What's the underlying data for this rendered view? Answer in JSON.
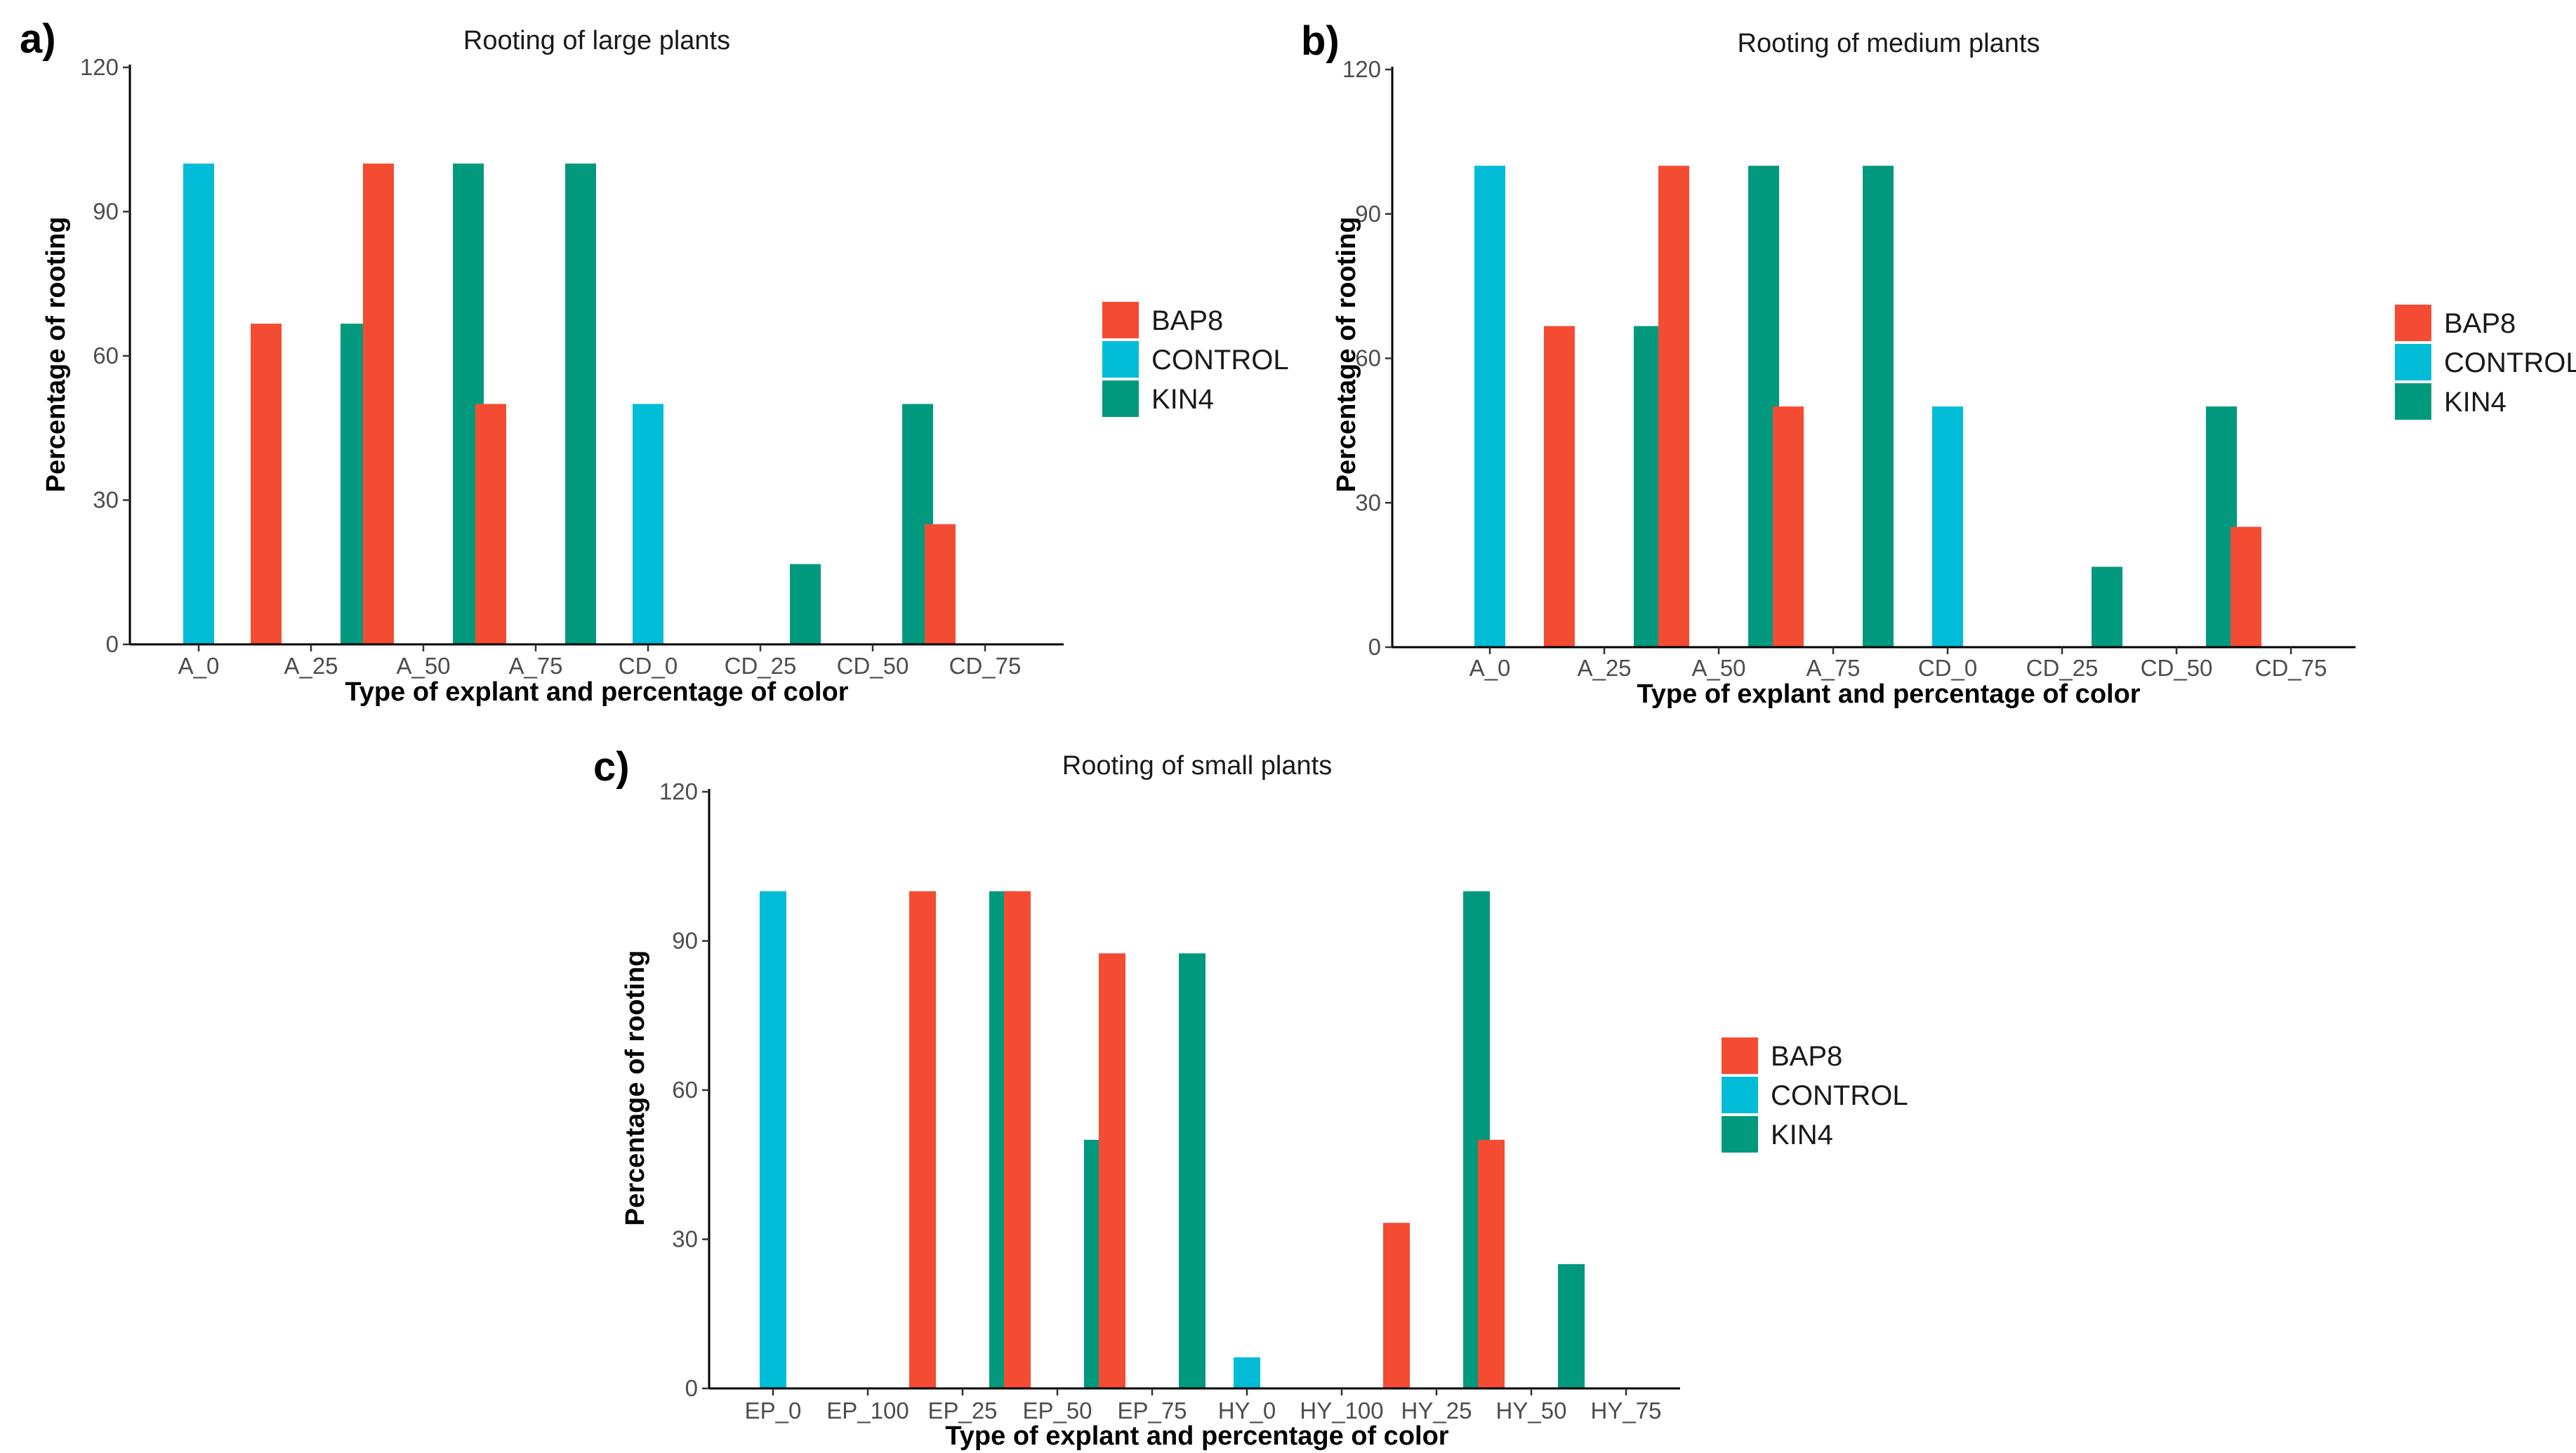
{
  "colors": {
    "BAP8": "#f44c32",
    "CONTROL": "#00bcd6",
    "KIN4": "#00997e"
  },
  "chart_data": [
    {
      "panel_label": "a)",
      "type": "bar",
      "title": "Rooting of large plants",
      "xlabel": "Type of explant and percentage of color",
      "ylabel": "Percentage of rooting",
      "ylim": [
        0,
        120
      ],
      "yticks": [
        0,
        30,
        60,
        90,
        120
      ],
      "categories": [
        "A_0",
        "A_25",
        "A_50",
        "A_75",
        "CD_0",
        "CD_25",
        "CD_50",
        "CD_75"
      ],
      "legend": [
        "BAP8",
        "CONTROL",
        "KIN4"
      ],
      "bars": [
        {
          "category": "A_0",
          "series": "CONTROL",
          "value": 100
        },
        {
          "category": "A_25",
          "series": "BAP8",
          "value": 66.7
        },
        {
          "category": "A_25",
          "series": "KIN4",
          "value": 66.7
        },
        {
          "category": "A_50",
          "series": "BAP8",
          "value": 100
        },
        {
          "category": "A_50",
          "series": "KIN4",
          "value": 100
        },
        {
          "category": "A_75",
          "series": "BAP8",
          "value": 50
        },
        {
          "category": "A_75",
          "series": "KIN4",
          "value": 100
        },
        {
          "category": "CD_0",
          "series": "CONTROL",
          "value": 50
        },
        {
          "category": "CD_25",
          "series": "KIN4",
          "value": 16.7
        },
        {
          "category": "CD_50",
          "series": "KIN4",
          "value": 50
        },
        {
          "category": "CD_75",
          "series": "BAP8",
          "value": 25
        }
      ]
    },
    {
      "panel_label": "b)",
      "type": "bar",
      "title": "Rooting of medium plants",
      "xlabel": "Type of explant and percentage of color",
      "ylabel": "Percentage of rooting",
      "ylim": [
        0,
        120
      ],
      "yticks": [
        0,
        30,
        60,
        90,
        120
      ],
      "categories": [
        "A_0",
        "A_25",
        "A_50",
        "A_75",
        "CD_0",
        "CD_25",
        "CD_50",
        "CD_75"
      ],
      "legend": [
        "BAP8",
        "CONTROL",
        "KIN4"
      ],
      "bars": [
        {
          "category": "A_0",
          "series": "CONTROL",
          "value": 100
        },
        {
          "category": "A_25",
          "series": "BAP8",
          "value": 66.7
        },
        {
          "category": "A_25",
          "series": "KIN4",
          "value": 66.7
        },
        {
          "category": "A_50",
          "series": "BAP8",
          "value": 100
        },
        {
          "category": "A_50",
          "series": "KIN4",
          "value": 100
        },
        {
          "category": "A_75",
          "series": "BAP8",
          "value": 50
        },
        {
          "category": "A_75",
          "series": "KIN4",
          "value": 100
        },
        {
          "category": "CD_0",
          "series": "CONTROL",
          "value": 50
        },
        {
          "category": "CD_25",
          "series": "KIN4",
          "value": 16.7
        },
        {
          "category": "CD_50",
          "series": "KIN4",
          "value": 50
        },
        {
          "category": "CD_75",
          "series": "BAP8",
          "value": 25
        }
      ]
    },
    {
      "panel_label": "c)",
      "type": "bar",
      "title": "Rooting of small plants",
      "xlabel": "Type of explant and percentage of color",
      "ylabel": "Percentage of rooting",
      "ylim": [
        0,
        120
      ],
      "yticks": [
        0,
        30,
        60,
        90,
        120
      ],
      "categories": [
        "EP_0",
        "EP_100",
        "EP_25",
        "EP_50",
        "EP_75",
        "HY_0",
        "HY_100",
        "HY_25",
        "HY_50",
        "HY_75"
      ],
      "legend": [
        "BAP8",
        "CONTROL",
        "KIN4"
      ],
      "bars": [
        {
          "category": "EP_0",
          "series": "CONTROL",
          "value": 100
        },
        {
          "category": "EP_25",
          "series": "BAP8",
          "value": 100
        },
        {
          "category": "EP_25",
          "series": "KIN4",
          "value": 100
        },
        {
          "category": "EP_50",
          "series": "BAP8",
          "value": 100
        },
        {
          "category": "EP_50",
          "series": "KIN4",
          "value": 50
        },
        {
          "category": "EP_75",
          "series": "BAP8",
          "value": 87.5
        },
        {
          "category": "EP_75",
          "series": "KIN4",
          "value": 87.5
        },
        {
          "category": "HY_0",
          "series": "CONTROL",
          "value": 6.25
        },
        {
          "category": "HY_25",
          "series": "BAP8",
          "value": 33.3
        },
        {
          "category": "HY_25",
          "series": "KIN4",
          "value": 100
        },
        {
          "category": "HY_50",
          "series": "BAP8",
          "value": 50
        },
        {
          "category": "HY_50",
          "series": "KIN4",
          "value": 25
        }
      ]
    }
  ]
}
